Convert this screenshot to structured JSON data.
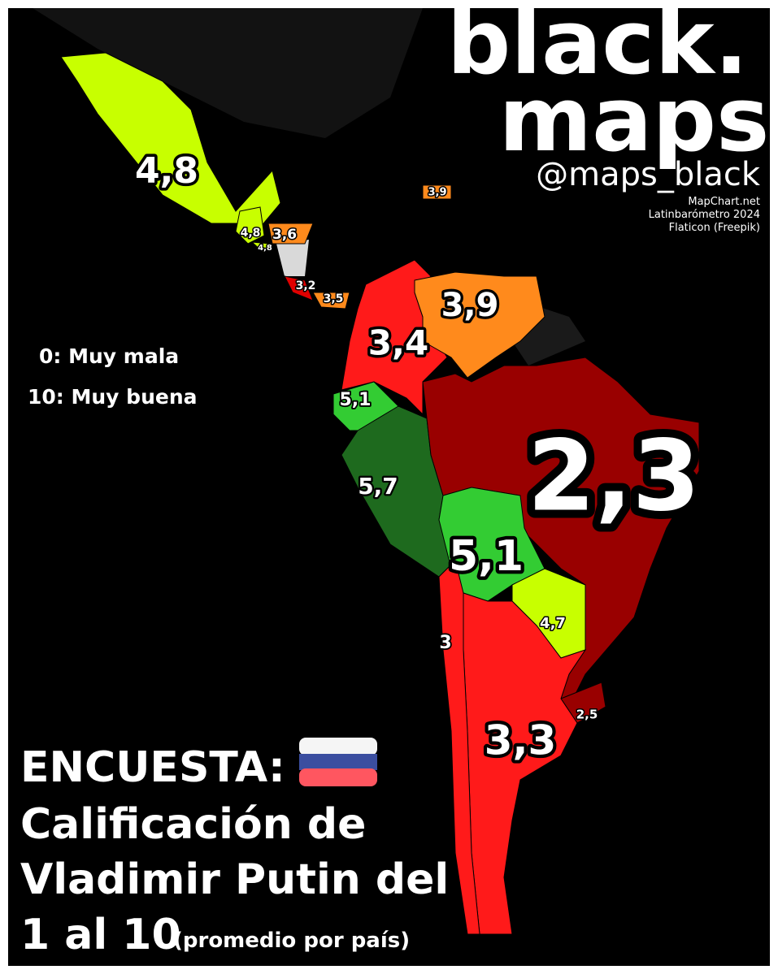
{
  "brand": {
    "line1": "black.",
    "line2": "maps",
    "handle": "@maps_black"
  },
  "sources": [
    "MapChart.net",
    "Latinbarómetro 2024",
    "Flaticon (Freepik)"
  ],
  "legend": [
    "0: Muy mala",
    "10: Muy buena"
  ],
  "title": {
    "lead": "ENCUESTA:",
    "line2": "Calificación de",
    "line3": "Vladimir Putin del",
    "line4": "1 al 10",
    "note": "(promedio por país)"
  },
  "regions": [
    {
      "value": 4.8,
      "label": "4,8",
      "color": "#c8ff00"
    },
    {
      "value": 4.8,
      "label": "4,8",
      "color": "#c8ff00"
    },
    {
      "value": 4.8,
      "label": "4,8",
      "color": "#c8ff00"
    },
    {
      "value": 3.6,
      "label": "3,6",
      "color": "#ff8a1c"
    },
    {
      "value": 3.2,
      "label": "3,2",
      "color": "#e00000"
    },
    {
      "value": 3.5,
      "label": "3,5",
      "color": "#ff8a1c"
    },
    {
      "value": 3.9,
      "label": "3,9",
      "color": "#ff8a1c"
    },
    {
      "value": 3.4,
      "label": "3,4",
      "color": "#ff1a1a"
    },
    {
      "value": 3.9,
      "label": "3,9",
      "color": "#ff8a1c"
    },
    {
      "value": 5.1,
      "label": "5,1",
      "color": "#33cc33"
    },
    {
      "value": 5.7,
      "label": "5,7",
      "color": "#1e6a1e"
    },
    {
      "value": 2.3,
      "label": "2,3",
      "color": "#990000"
    },
    {
      "value": 5.1,
      "label": "5,1",
      "color": "#33cc33"
    },
    {
      "value": 4.7,
      "label": "4,7",
      "color": "#c8ff00"
    },
    {
      "value": 2.5,
      "label": "2,5",
      "color": "#990000"
    },
    {
      "value": 3.3,
      "label": "3,3",
      "color": "#ff1a1a"
    },
    {
      "value": 3,
      "label": "3",
      "color": "#ff1a1a"
    }
  ]
}
